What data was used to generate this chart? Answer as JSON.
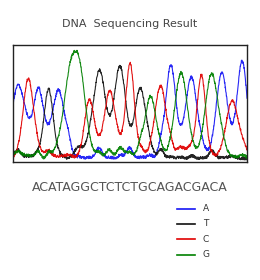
{
  "title": "DNA  Sequencing Result",
  "sequence": "ACATAGGCTCTCTGCAGACGACA",
  "colors": {
    "A": "#1515f5",
    "T": "#111111",
    "C": "#e00000",
    "G": "#008000"
  },
  "legend_labels": [
    "A",
    "T",
    "C",
    "G"
  ],
  "legend_colors": [
    "#1515f5",
    "#111111",
    "#e00000",
    "#008000"
  ],
  "background": "#ffffff",
  "title_fontsize": 8,
  "seq_fontsize": 9,
  "box_color": "#222222"
}
